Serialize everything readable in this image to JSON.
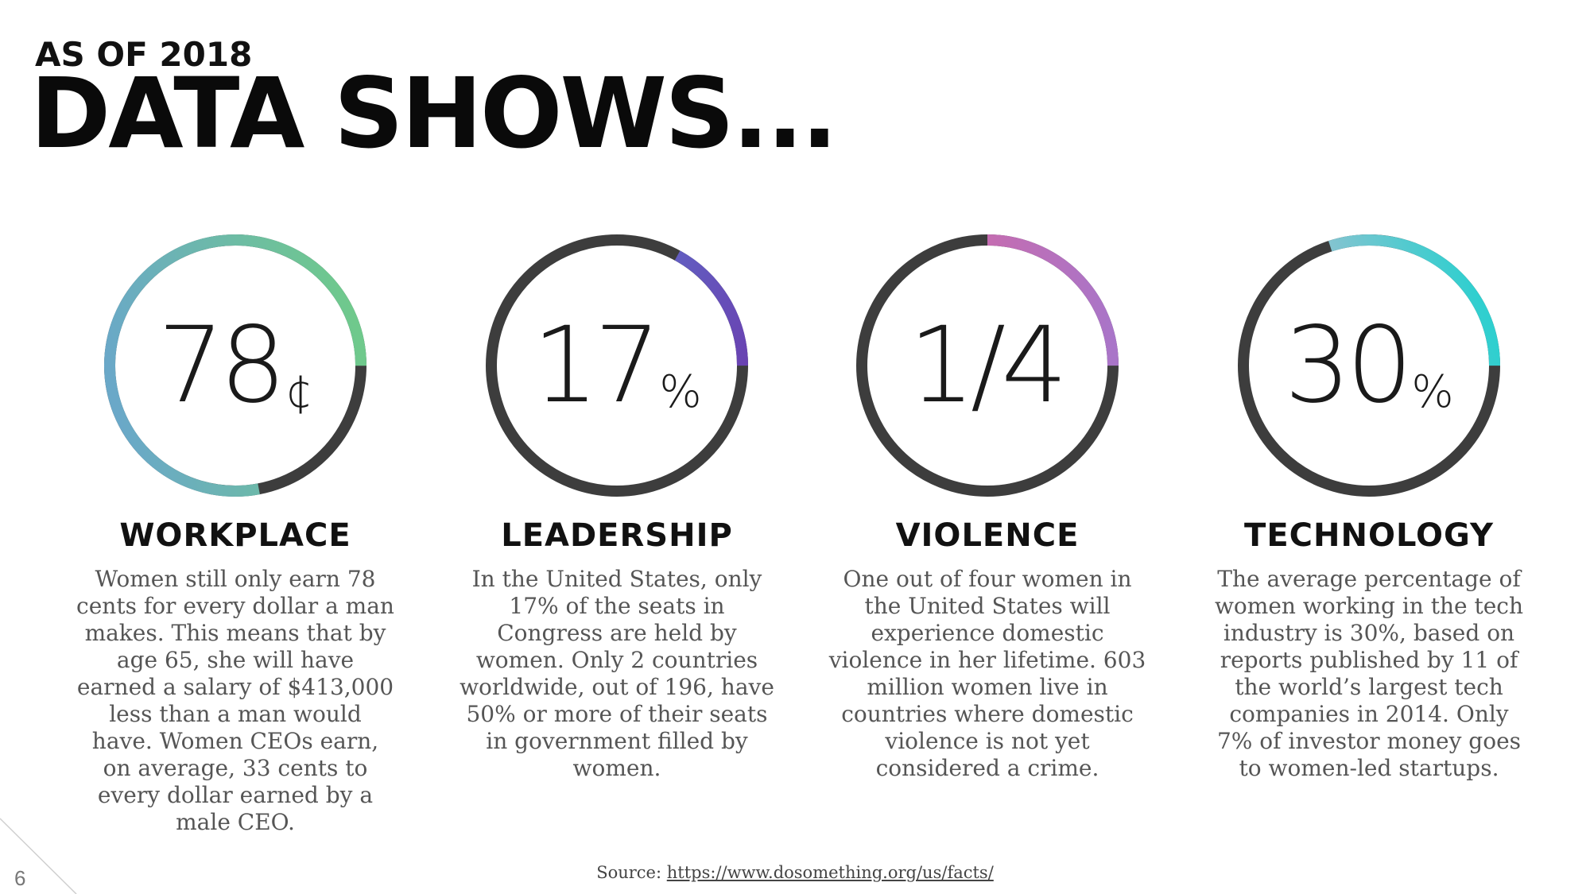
{
  "header": {
    "kicker": "AS OF 2018",
    "title": "DATA SHOWS..."
  },
  "stats": [
    {
      "id": "workplace",
      "figure": "78",
      "unit": "¢",
      "progress": 0.78,
      "colors": [
        "#6fc98c",
        "#6aa8c8"
      ],
      "label": "WORKPLACE",
      "description": "Women still only earn 78 cents for every dollar a man makes. This means that by age 65, she will have earned a salary of $413,000 less than a man would have. Women CEOs earn, on average, 33 cents to every dollar earned by a male CEO."
    },
    {
      "id": "leadership",
      "figure": "17",
      "unit": "%",
      "progress": 0.17,
      "colors": [
        "#5b7bd0",
        "#6a3fb0"
      ],
      "label": "LEADERSHIP",
      "description": "In the United States, only 17% of the seats in Congress are held by women. Only 2 countries worldwide, out of 196, have 50% or more of their seats in government filled by women."
    },
    {
      "id": "violence",
      "figure": "1/4",
      "unit": "",
      "progress": 0.25,
      "colors": [
        "#e0649a",
        "#a975c8"
      ],
      "label": "VIOLENCE",
      "description": "One out of four women in the United States will experience domestic violence in her lifetime. 603 million women live in countries where domestic violence is not yet considered a crime."
    },
    {
      "id": "technology",
      "figure": "30",
      "unit": "%",
      "progress": 0.3,
      "colors": [
        "#d8b8d0",
        "#2fcfcf"
      ],
      "label": "TECHNOLOGY",
      "description": "The average percentage of women working in the tech industry is 30%, based on reports published by 11 of the world’s largest tech companies in 2014. Only 7% of investor money goes to women-led startups."
    }
  ],
  "footer": {
    "source_label": "Source:",
    "source_url": "https://www.dosomething.org/us/facts/",
    "page_number": "6"
  },
  "theme": {
    "ring_track": "#3d3d3d",
    "text_dark": "#111111",
    "text_body": "#555555"
  }
}
